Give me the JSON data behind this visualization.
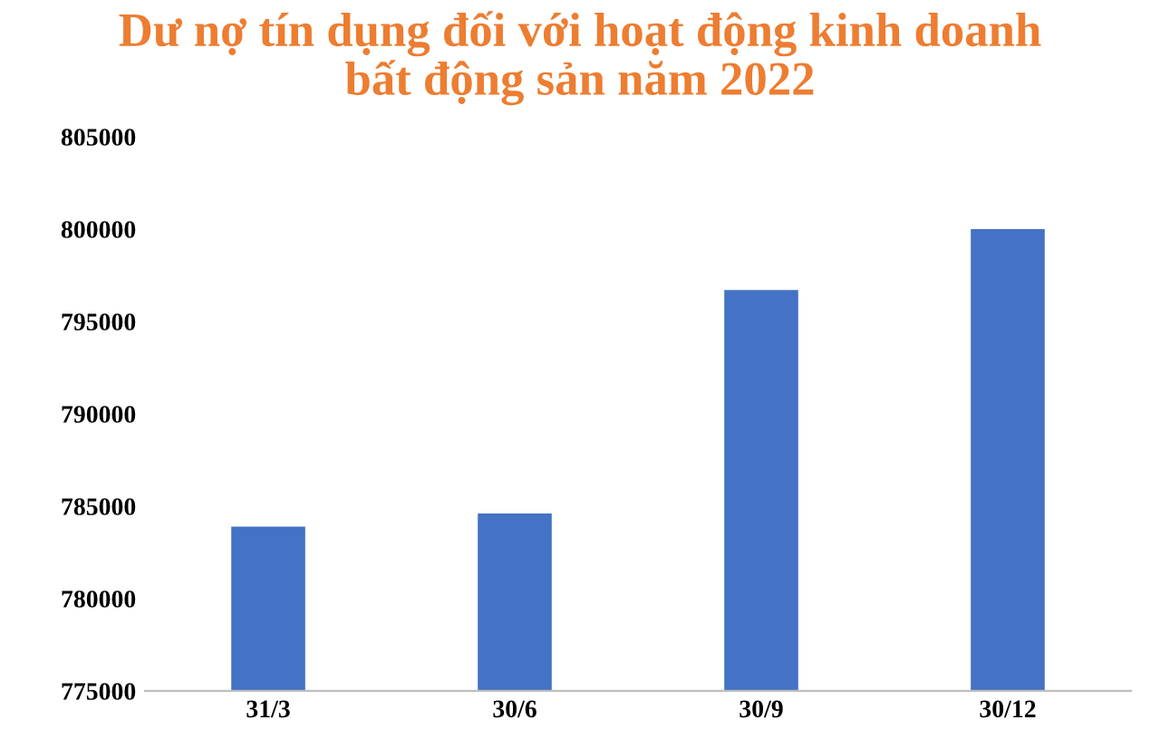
{
  "chart_data": {
    "type": "bar",
    "title": "Dư nợ tín dụng đối với hoạt động kinh doanh\nbất động sản năm 2022",
    "categories": [
      "31/3",
      "30/6",
      "30/9",
      "30/12"
    ],
    "values": [
      783900,
      784600,
      796700,
      800000
    ],
    "color": "#4472c4",
    "ylim": [
      775000,
      805000
    ],
    "yticks": [
      775000,
      780000,
      785000,
      790000,
      795000,
      800000,
      805000
    ],
    "grid": false
  }
}
